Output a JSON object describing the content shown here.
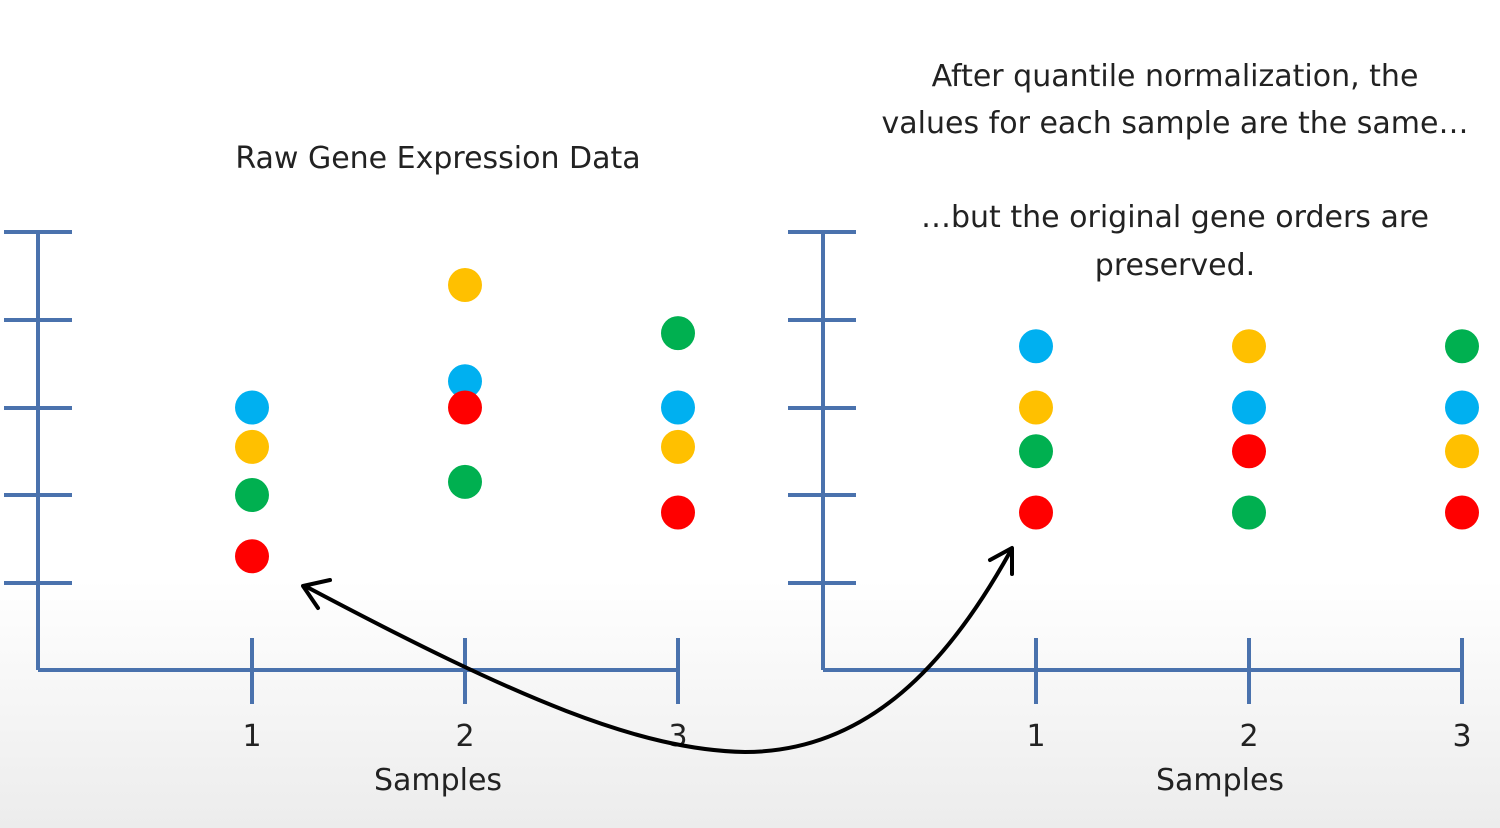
{
  "colors": {
    "axis": "#4a72ad",
    "blue": "#00b0f0",
    "orange": "#ffc000",
    "green": "#00b050",
    "red": "#ff0000",
    "arrow": "#000000"
  },
  "notes": {
    "line1": "After quantile normalization, the",
    "line2": "values for each sample are the same…",
    "line3": "…but the original gene orders are",
    "line4": "preserved."
  },
  "chart_data": [
    {
      "type": "scatter",
      "title": "Raw Gene Expression Data",
      "xlabel": "Samples",
      "ylabel": "",
      "categories": [
        "1",
        "2",
        "3"
      ],
      "ylim": [
        0,
        5
      ],
      "grid": false,
      "series": [
        {
          "color": "blue",
          "values": [
            3.0,
            3.3,
            3.0
          ]
        },
        {
          "color": "orange",
          "values": [
            2.55,
            4.4,
            2.55
          ]
        },
        {
          "color": "green",
          "values": [
            2.0,
            2.15,
            3.85
          ]
        },
        {
          "color": "red",
          "values": [
            1.3,
            3.0,
            1.8
          ]
        }
      ]
    },
    {
      "type": "scatter",
      "title": "",
      "xlabel": "Samples",
      "ylabel": "",
      "categories": [
        "1",
        "2",
        "3"
      ],
      "ylim": [
        0,
        5
      ],
      "grid": false,
      "series": [
        {
          "color": "blue",
          "values": [
            3.7,
            3.0,
            3.0
          ]
        },
        {
          "color": "orange",
          "values": [
            3.0,
            3.7,
            2.5
          ]
        },
        {
          "color": "green",
          "values": [
            2.5,
            1.8,
            3.7
          ]
        },
        {
          "color": "red",
          "values": [
            1.8,
            2.5,
            1.8
          ]
        }
      ]
    }
  ]
}
